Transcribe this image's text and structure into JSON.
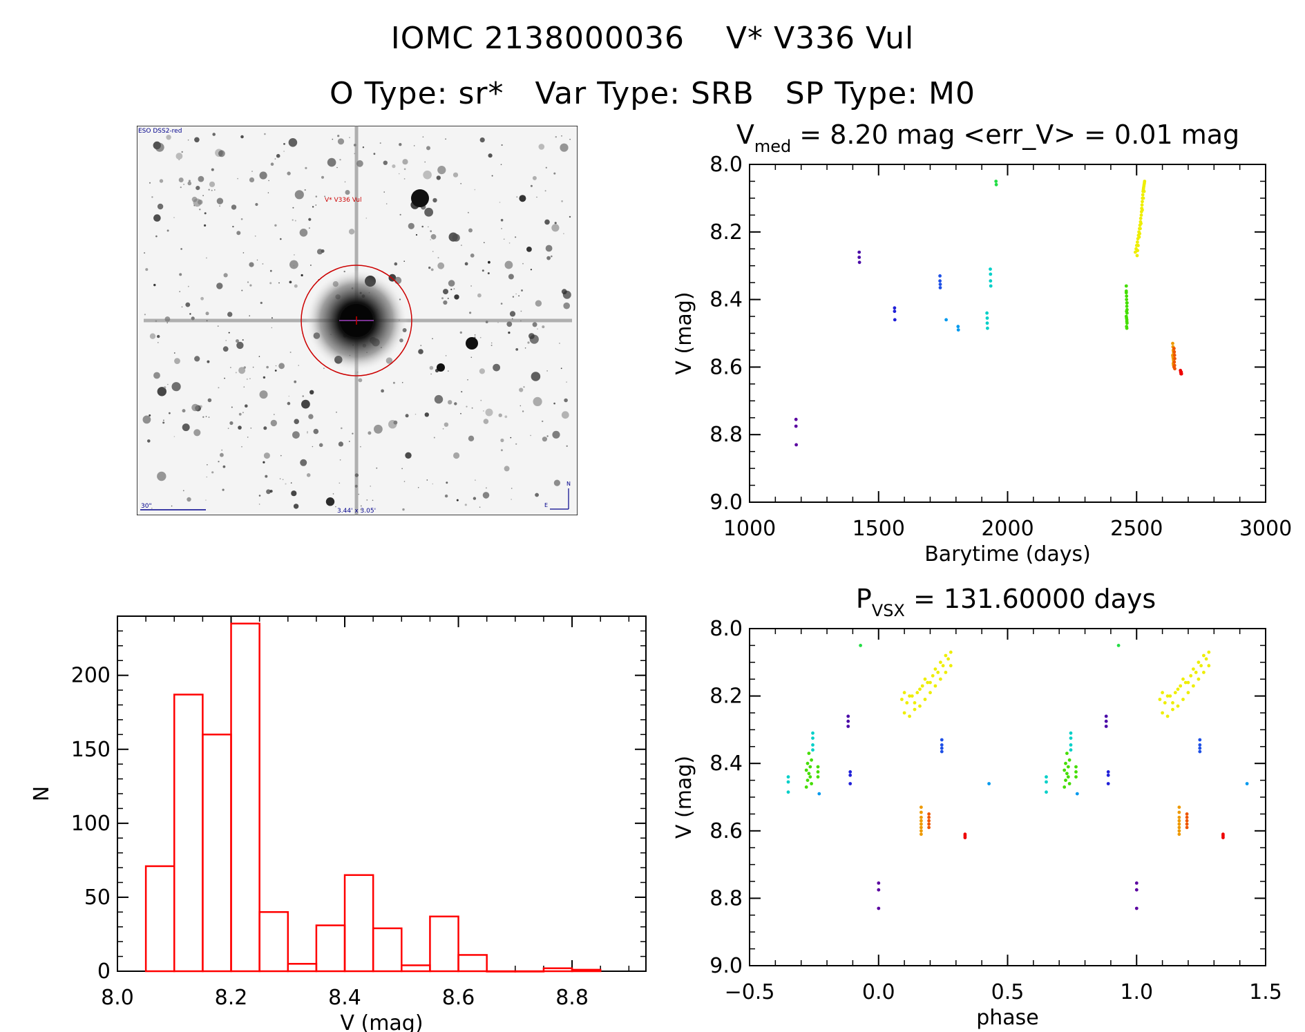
{
  "header": {
    "title_line1": "IOMC 2138000036    V* V336 Vul",
    "title_line2": "O Type: sr*   Var Type: SRB   SP Type: M0"
  },
  "sky_image": {
    "survey_label": "ESO DSS2-red",
    "target_label": "V* V336 Vul",
    "scale_label": "30\"",
    "fov_label": "3.44' x 3.05'",
    "compass_n": "N",
    "compass_e": "E"
  },
  "colors": {
    "histogram": "#ff0000",
    "finder_circle": "#cc0000",
    "label_red": "#cc0000",
    "label_blue": "#00008b"
  },
  "chart_data": [
    {
      "id": "lightcurve",
      "type": "scatter",
      "title_main": "V",
      "title_sub": "med",
      "title_rest": " = 8.20 mag <err_V> = 0.01 mag",
      "xlabel": "Barytime (days)",
      "ylabel": "V (mag)",
      "xlim": [
        1000,
        3000
      ],
      "ylim": [
        9.0,
        8.0
      ],
      "inverted_y": true,
      "xticks": [
        "1000",
        "1500",
        "2000",
        "2500",
        "3000"
      ],
      "yticks": [
        "8.0",
        "8.2",
        "8.4",
        "8.6",
        "8.8",
        "9.0"
      ],
      "groups": [
        {
          "color": "#5a00a0",
          "x": [
            1180,
            1180,
            1181
          ],
          "y": [
            8.755,
            8.775,
            8.83
          ]
        },
        {
          "color": "#4b0ca8",
          "x": [
            1425,
            1425,
            1426
          ],
          "y": [
            8.26,
            8.275,
            8.29
          ]
        },
        {
          "color": "#2020d8",
          "x": [
            1562,
            1562,
            1563
          ],
          "y": [
            8.425,
            8.435,
            8.46
          ]
        },
        {
          "color": "#1e50e6",
          "x": [
            1738,
            1738,
            1739,
            1739
          ],
          "y": [
            8.33,
            8.345,
            8.355,
            8.365
          ]
        },
        {
          "color": "#0099ee",
          "x": [
            1762,
            1808,
            1809
          ],
          "y": [
            8.46,
            8.48,
            8.49
          ]
        },
        {
          "color": "#00d0c8",
          "x": [
            1920,
            1921,
            1922,
            1921,
            1933,
            1934,
            1934,
            1935
          ],
          "y": [
            8.44,
            8.455,
            8.485,
            8.47,
            8.31,
            8.325,
            8.345,
            8.36
          ]
        },
        {
          "color": "#22dd44",
          "x": [
            1955,
            1956
          ],
          "y": [
            8.05,
            8.06
          ]
        },
        {
          "color": "#44dd00",
          "x": [
            2460,
            2460,
            2461,
            2461,
            2462,
            2462,
            2463,
            2463,
            2460,
            2461,
            2462,
            2463,
            2461,
            2462,
            2460,
            2463,
            2461,
            2462
          ],
          "y": [
            8.36,
            8.375,
            8.39,
            8.4,
            8.41,
            8.42,
            8.43,
            8.44,
            8.45,
            8.455,
            8.46,
            8.47,
            8.48,
            8.485,
            8.38,
            8.41,
            8.435,
            8.465
          ]
        },
        {
          "color": "#eeee00",
          "x": [
            2495,
            2498,
            2500,
            2503,
            2505,
            2507,
            2509,
            2511,
            2513,
            2515,
            2516,
            2518,
            2519,
            2520,
            2521,
            2522,
            2523,
            2524,
            2525,
            2526,
            2527,
            2528,
            2529,
            2530,
            2531,
            2502,
            2506,
            2510,
            2514,
            2517,
            2522,
            2526,
            2529,
            2504,
            2512
          ],
          "y": [
            8.26,
            8.25,
            8.24,
            8.23,
            8.22,
            8.21,
            8.2,
            8.19,
            8.18,
            8.17,
            8.16,
            8.15,
            8.14,
            8.13,
            8.12,
            8.11,
            8.1,
            8.09,
            8.08,
            8.075,
            8.07,
            8.065,
            8.06,
            8.055,
            8.05,
            8.27,
            8.24,
            8.215,
            8.19,
            8.175,
            8.135,
            8.1,
            8.08,
            8.255,
            8.205
          ]
        },
        {
          "color": "#ee9900",
          "x": [
            2640,
            2641,
            2642,
            2643,
            2644,
            2640,
            2641,
            2642,
            2643,
            2644,
            2642,
            2643
          ],
          "y": [
            8.53,
            8.54,
            8.55,
            8.555,
            8.56,
            8.565,
            8.57,
            8.575,
            8.58,
            8.585,
            8.59,
            8.595
          ]
        },
        {
          "color": "#ee5500",
          "x": [
            2645,
            2646,
            2647,
            2648,
            2646,
            2647,
            2645,
            2648
          ],
          "y": [
            8.545,
            8.555,
            8.565,
            8.575,
            8.585,
            8.595,
            8.6,
            8.605
          ]
        },
        {
          "color": "#ee0000",
          "x": [
            2670,
            2671,
            2672,
            2673,
            2674
          ],
          "y": [
            8.61,
            8.615,
            8.62,
            8.615,
            8.62
          ]
        }
      ]
    },
    {
      "id": "histogram",
      "type": "bar",
      "title": "",
      "xlabel": "V (mag)",
      "ylabel": "N",
      "xlim": [
        8.0,
        8.93
      ],
      "ylim": [
        0,
        240
      ],
      "xticks": [
        "8.0",
        "8.2",
        "8.4",
        "8.6",
        "8.8"
      ],
      "yticks": [
        "0",
        "50",
        "100",
        "150",
        "200"
      ],
      "bin_edges": [
        8.05,
        8.1,
        8.15,
        8.2,
        8.25,
        8.3,
        8.35,
        8.4,
        8.45,
        8.5,
        8.55,
        8.6,
        8.65,
        8.7,
        8.75,
        8.8,
        8.85
      ],
      "values": [
        71,
        187,
        160,
        235,
        40,
        5,
        31,
        65,
        29,
        4,
        37,
        11,
        0,
        0,
        2,
        1
      ]
    },
    {
      "id": "phased",
      "type": "scatter",
      "title_main": "P",
      "title_sub": "VSX",
      "title_rest": " = 131.60000 days",
      "xlabel": "phase",
      "ylabel": "V (mag)",
      "xlim": [
        -0.5,
        1.5
      ],
      "ylim": [
        9.0,
        8.0
      ],
      "inverted_y": true,
      "xticks": [
        "−0.5",
        "0.0",
        "0.5",
        "1.0",
        "1.5"
      ],
      "yticks": [
        "8.0",
        "8.2",
        "8.4",
        "8.6",
        "8.8",
        "9.0"
      ],
      "groups": [
        {
          "color": "#5a00a0",
          "x": [
            0.0,
            0.0,
            0.0,
            1.0,
            1.0,
            1.0
          ],
          "y": [
            8.755,
            8.775,
            8.83,
            8.755,
            8.775,
            8.83
          ]
        },
        {
          "color": "#4b0ca8",
          "x": [
            -0.118,
            -0.118,
            -0.118,
            0.882,
            0.882,
            0.882
          ],
          "y": [
            8.26,
            8.275,
            8.29,
            8.26,
            8.275,
            8.29
          ]
        },
        {
          "color": "#2020d8",
          "x": [
            -0.11,
            -0.11,
            -0.11,
            0.89,
            0.89,
            0.89
          ],
          "y": [
            8.425,
            8.435,
            8.46,
            8.425,
            8.435,
            8.46
          ]
        },
        {
          "color": "#1e50e6",
          "x": [
            0.245,
            0.245,
            0.245,
            0.245,
            1.245,
            1.245,
            1.245,
            1.245
          ],
          "y": [
            8.33,
            8.345,
            8.355,
            8.365,
            8.33,
            8.345,
            8.355,
            8.365
          ]
        },
        {
          "color": "#0099ee",
          "x": [
            0.428,
            1.428,
            -0.23,
            0.77
          ],
          "y": [
            8.46,
            8.46,
            8.49,
            8.49
          ]
        },
        {
          "color": "#00d0c8",
          "x": [
            -0.35,
            -0.35,
            -0.35,
            0.65,
            0.65,
            0.65,
            -0.255,
            -0.255,
            -0.255,
            -0.255,
            0.745,
            0.745,
            0.745,
            0.745
          ],
          "y": [
            8.44,
            8.455,
            8.485,
            8.44,
            8.455,
            8.485,
            8.31,
            8.325,
            8.345,
            8.36,
            8.31,
            8.325,
            8.345,
            8.36
          ]
        },
        {
          "color": "#22dd44",
          "x": [
            -0.07,
            0.93
          ],
          "y": [
            8.05,
            8.05
          ]
        },
        {
          "color": "#44dd00",
          "x": [
            -0.28,
            -0.275,
            -0.27,
            -0.265,
            -0.26,
            -0.27,
            -0.265,
            -0.275,
            -0.26,
            -0.28,
            -0.235,
            -0.235,
            -0.235,
            0.72,
            0.725,
            0.73,
            0.735,
            0.74,
            0.73,
            0.735,
            0.725,
            0.74,
            0.72,
            0.765,
            0.765,
            0.765
          ],
          "y": [
            8.47,
            8.45,
            8.43,
            8.41,
            8.39,
            8.37,
            8.44,
            8.4,
            8.46,
            8.42,
            8.41,
            8.425,
            8.44,
            8.47,
            8.45,
            8.43,
            8.41,
            8.39,
            8.37,
            8.44,
            8.4,
            8.46,
            8.42,
            8.41,
            8.425,
            8.44
          ]
        },
        {
          "color": "#eeee00",
          "x": [
            0.09,
            0.1,
            0.11,
            0.12,
            0.13,
            0.14,
            0.15,
            0.16,
            0.17,
            0.18,
            0.19,
            0.2,
            0.21,
            0.22,
            0.23,
            0.24,
            0.25,
            0.26,
            0.27,
            0.28,
            0.1,
            0.12,
            0.14,
            0.16,
            0.18,
            0.2,
            0.22,
            0.24,
            0.26,
            0.28,
            1.09,
            1.1,
            1.11,
            1.12,
            1.13,
            1.14,
            1.15,
            1.16,
            1.17,
            1.18,
            1.19,
            1.2,
            1.21,
            1.22,
            1.23,
            1.24,
            1.25,
            1.26,
            1.27,
            1.28,
            1.1,
            1.12,
            1.14,
            1.16,
            1.18,
            1.2,
            1.22,
            1.24,
            1.26,
            1.28
          ],
          "y": [
            8.21,
            8.25,
            8.22,
            8.26,
            8.2,
            8.24,
            8.19,
            8.23,
            8.17,
            8.21,
            8.16,
            8.19,
            8.14,
            8.17,
            8.13,
            8.15,
            8.11,
            8.13,
            8.09,
            8.11,
            8.19,
            8.2,
            8.22,
            8.18,
            8.15,
            8.16,
            8.12,
            8.1,
            8.08,
            8.07,
            8.21,
            8.25,
            8.22,
            8.26,
            8.2,
            8.24,
            8.19,
            8.23,
            8.17,
            8.21,
            8.16,
            8.19,
            8.14,
            8.17,
            8.13,
            8.15,
            8.11,
            8.13,
            8.09,
            8.11,
            8.19,
            8.2,
            8.22,
            8.18,
            8.15,
            8.16,
            8.12,
            8.1,
            8.08,
            8.07
          ]
        },
        {
          "color": "#ee9900",
          "x": [
            0.165,
            0.165,
            0.165,
            0.165,
            0.165,
            0.165,
            0.165,
            0.165,
            1.165,
            1.165,
            1.165,
            1.165,
            1.165,
            1.165,
            1.165,
            1.165
          ],
          "y": [
            8.53,
            8.545,
            8.56,
            8.57,
            8.58,
            8.59,
            8.6,
            8.61,
            8.53,
            8.545,
            8.56,
            8.57,
            8.58,
            8.59,
            8.6,
            8.61
          ]
        },
        {
          "color": "#ee5500",
          "x": [
            0.195,
            0.195,
            0.195,
            0.195,
            0.195,
            1.195,
            1.195,
            1.195,
            1.195,
            1.195
          ],
          "y": [
            8.55,
            8.56,
            8.57,
            8.58,
            8.59,
            8.55,
            8.56,
            8.57,
            8.58,
            8.59
          ]
        },
        {
          "color": "#ee0000",
          "x": [
            0.335,
            0.335,
            0.335,
            1.335,
            1.335,
            1.335
          ],
          "y": [
            8.61,
            8.615,
            8.62,
            8.61,
            8.615,
            8.62
          ]
        }
      ]
    }
  ]
}
